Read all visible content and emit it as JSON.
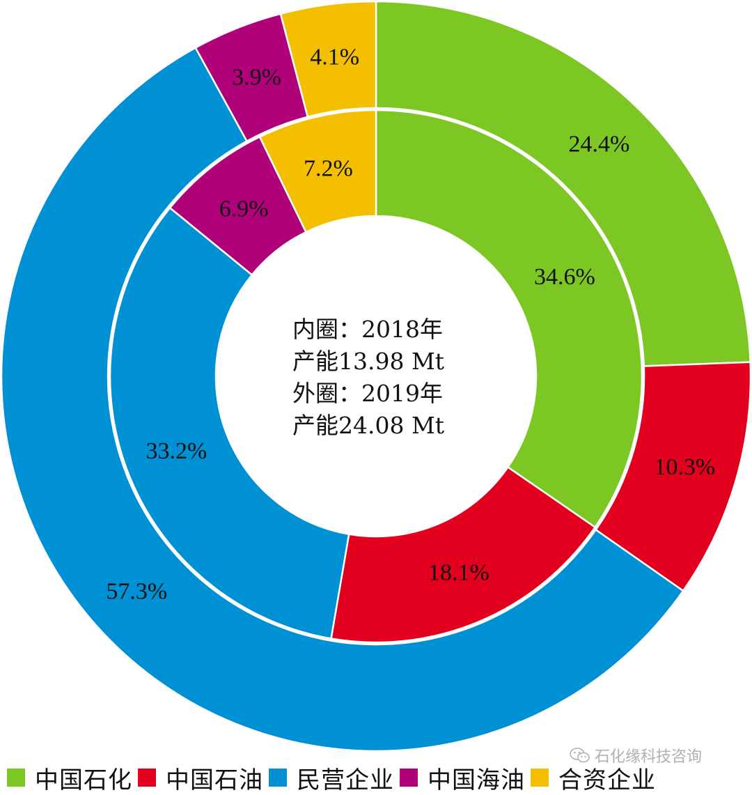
{
  "chart_data": {
    "type": "donut",
    "categories": [
      "中国石化",
      "中国石油",
      "民营企业",
      "中国海油",
      "合资企业"
    ],
    "series": [
      {
        "ring": "inner",
        "values": [
          34.6,
          18.1,
          33.2,
          6.9,
          7.2
        ],
        "labels": [
          "34.6%",
          "18.1%",
          "33.2%",
          "6.9%",
          "7.2%"
        ]
      },
      {
        "ring": "outer",
        "values": [
          24.4,
          10.3,
          57.3,
          3.9,
          4.1
        ],
        "labels": [
          "24.4%",
          "10.3%",
          "57.3%",
          "3.9%",
          "4.1%"
        ]
      }
    ],
    "colors": [
      "#7dc724",
      "#e3001f",
      "#0090d4",
      "#b0007a",
      "#f4bf00"
    ],
    "annotations": [
      "内圈：2018年",
      "产能13.98 Mt",
      "外圈：2019年",
      "产能24.08 Mt"
    ],
    "legend": {
      "position": "bottom",
      "entries": [
        "中国石化",
        "中国石油",
        "民营企业",
        "中国海油",
        "合资企业"
      ]
    }
  },
  "watermark": {
    "text": "石化缘科技咨询",
    "icon": "wechat-icon"
  }
}
